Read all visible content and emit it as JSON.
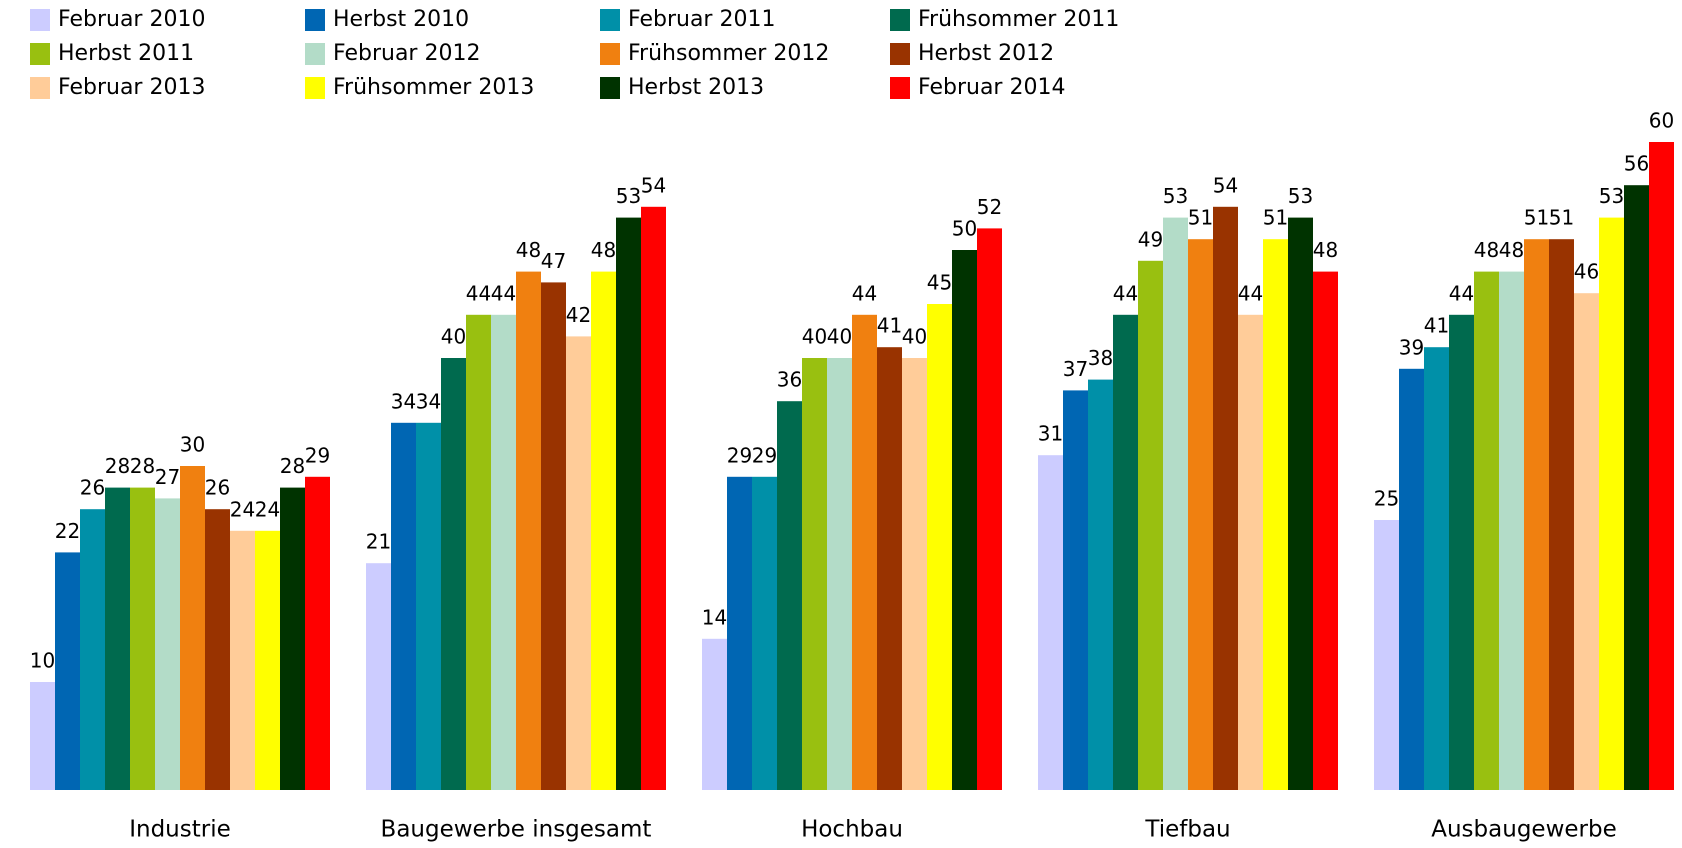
{
  "chart_data": {
    "type": "bar",
    "categories": [
      "Industrie",
      "Baugewerbe insgesamt",
      "Hochbau",
      "Tiefbau",
      "Ausbaugewerbe"
    ],
    "series": [
      {
        "name": "Februar 2010",
        "color": "#ccccff",
        "values": [
          10,
          21,
          14,
          31,
          25
        ]
      },
      {
        "name": "Herbst 2010",
        "color": "#0066b3",
        "values": [
          22,
          34,
          29,
          37,
          39
        ]
      },
      {
        "name": "Februar 2011",
        "color": "#0090a8",
        "values": [
          26,
          34,
          29,
          38,
          41
        ]
      },
      {
        "name": "Frühsommer 2011",
        "color": "#006a4e",
        "values": [
          28,
          40,
          36,
          44,
          44
        ]
      },
      {
        "name": "Herbst 2011",
        "color": "#99c010",
        "values": [
          28,
          44,
          40,
          49,
          48
        ]
      },
      {
        "name": "Februar 2012",
        "color": "#b3dcc8",
        "values": [
          27,
          44,
          40,
          53,
          48
        ]
      },
      {
        "name": "Frühsommer 2012",
        "color": "#f08010",
        "values": [
          30,
          48,
          44,
          51,
          51
        ]
      },
      {
        "name": "Herbst 2012",
        "color": "#993300",
        "values": [
          26,
          47,
          41,
          54,
          51
        ]
      },
      {
        "name": "Februar 2013",
        "color": "#ffcc99",
        "values": [
          24,
          42,
          40,
          44,
          46
        ]
      },
      {
        "name": "Frühsommer 2013",
        "color": "#ffff00",
        "values": [
          24,
          48,
          45,
          51,
          53
        ]
      },
      {
        "name": "Herbst 2013",
        "color": "#003300",
        "values": [
          28,
          53,
          50,
          53,
          56
        ]
      },
      {
        "name": "Februar 2014",
        "color": "#ff0000",
        "values": [
          29,
          54,
          52,
          48,
          60
        ]
      }
    ]
  }
}
